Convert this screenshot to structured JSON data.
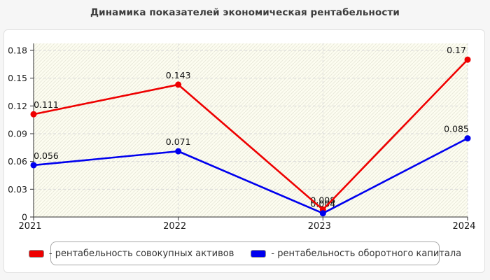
{
  "page": {
    "title": "Динамика показателей экономическая рентабельности"
  },
  "chart_data": {
    "type": "line",
    "title": "Динамика показателей экономическая рентабельности",
    "categories": [
      "2021",
      "2022",
      "2023",
      "2024"
    ],
    "series": [
      {
        "name": "рентабельность совокупных активов",
        "color": "#ee0000",
        "values": [
          0.111,
          0.143,
          0.008,
          0.17
        ],
        "point_labels": [
          "0.111",
          "0.143",
          "0.008",
          "0.17"
        ]
      },
      {
        "name": "рентабельность оборотного капитала",
        "color": "#0000ee",
        "values": [
          0.056,
          0.071,
          0.004,
          0.085
        ],
        "point_labels": [
          "0.056",
          "0.071",
          "0.004",
          "0.085"
        ]
      }
    ],
    "xlabel": "",
    "ylabel": "",
    "ylim": [
      0,
      0.18
    ],
    "y_ticks": [
      {
        "value": 0,
        "label": "0"
      },
      {
        "value": 0.03,
        "label": "0.03"
      },
      {
        "value": 0.06,
        "label": "0.06"
      },
      {
        "value": 0.09,
        "label": "0.09"
      },
      {
        "value": 0.12,
        "label": "0.12"
      },
      {
        "value": 0.15,
        "label": "0.15"
      },
      {
        "value": 0.18,
        "label": "0.18"
      }
    ],
    "grid": true,
    "legend_position": "bottom"
  },
  "legend": {
    "items": [
      {
        "label": "- рентабельность совокупных активов",
        "swatch_color": "#ee0000"
      },
      {
        "label": "- рентабельность оборотного капитала",
        "swatch_color": "#0000ee"
      }
    ]
  },
  "theme": {
    "page_background": "#f6f6f6",
    "card_background": "#ffffff",
    "plot_background": "#fdfdf1",
    "hatch_color": "#e8e8da",
    "grid_color": "#d9d9d9",
    "axis_color": "#2f2f2f",
    "label_color": "#111111"
  }
}
